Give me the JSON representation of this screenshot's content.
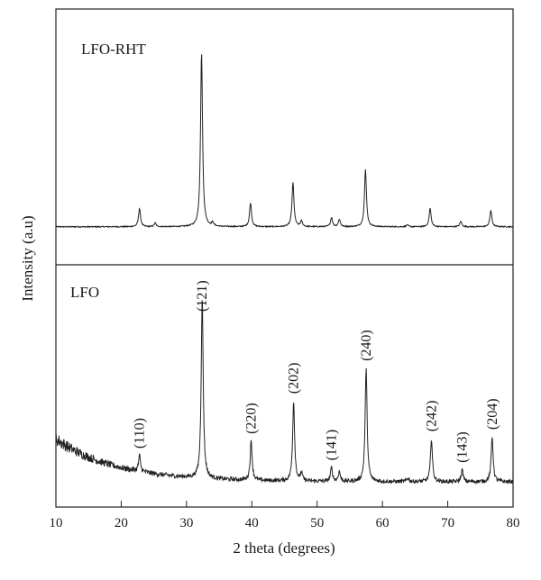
{
  "chart_data": {
    "type": "line",
    "xlabel": "2 theta (degrees)",
    "ylabel": "Intensity (a.u)",
    "xlim": [
      10,
      80
    ],
    "x_ticks": [
      "10",
      "20",
      "30",
      "40",
      "50",
      "60",
      "70",
      "80"
    ],
    "grid": false,
    "panels": [
      {
        "label": "LFO-RHT",
        "position": "top",
        "baseline": 0.05,
        "background_decay": 0.0,
        "noise": 0.006,
        "ymax": 1.0,
        "peaks": [
          {
            "x": 22.8,
            "height": 0.1
          },
          {
            "x": 25.2,
            "height": 0.02
          },
          {
            "x": 32.3,
            "height": 0.95
          },
          {
            "x": 34.0,
            "height": 0.02
          },
          {
            "x": 39.8,
            "height": 0.13
          },
          {
            "x": 46.3,
            "height": 0.24
          },
          {
            "x": 47.6,
            "height": 0.03
          },
          {
            "x": 52.2,
            "height": 0.05
          },
          {
            "x": 53.4,
            "height": 0.04
          },
          {
            "x": 57.4,
            "height": 0.31
          },
          {
            "x": 63.8,
            "height": 0.01
          },
          {
            "x": 67.3,
            "height": 0.1
          },
          {
            "x": 72.0,
            "height": 0.03
          },
          {
            "x": 76.6,
            "height": 0.09
          }
        ]
      },
      {
        "label": "LFO",
        "position": "bottom",
        "baseline": 0.0,
        "background_decay": 0.22,
        "noise": 0.02,
        "ymax": 1.0,
        "peaks": [
          {
            "x": 22.8,
            "height": 0.08,
            "label": "(110)"
          },
          {
            "x": 32.4,
            "height": 0.93,
            "label": "(121)"
          },
          {
            "x": 39.9,
            "height": 0.2,
            "label": "(220)"
          },
          {
            "x": 46.4,
            "height": 0.41,
            "label": "(202)"
          },
          {
            "x": 47.6,
            "height": 0.04
          },
          {
            "x": 52.2,
            "height": 0.07,
            "label": "(141)"
          },
          {
            "x": 53.4,
            "height": 0.05
          },
          {
            "x": 57.5,
            "height": 0.58,
            "label": "(240)"
          },
          {
            "x": 63.9,
            "height": 0.02
          },
          {
            "x": 67.5,
            "height": 0.22,
            "label": "(242)"
          },
          {
            "x": 72.2,
            "height": 0.06,
            "label": "(143)"
          },
          {
            "x": 76.8,
            "height": 0.23,
            "label": "(204)"
          }
        ]
      }
    ]
  }
}
